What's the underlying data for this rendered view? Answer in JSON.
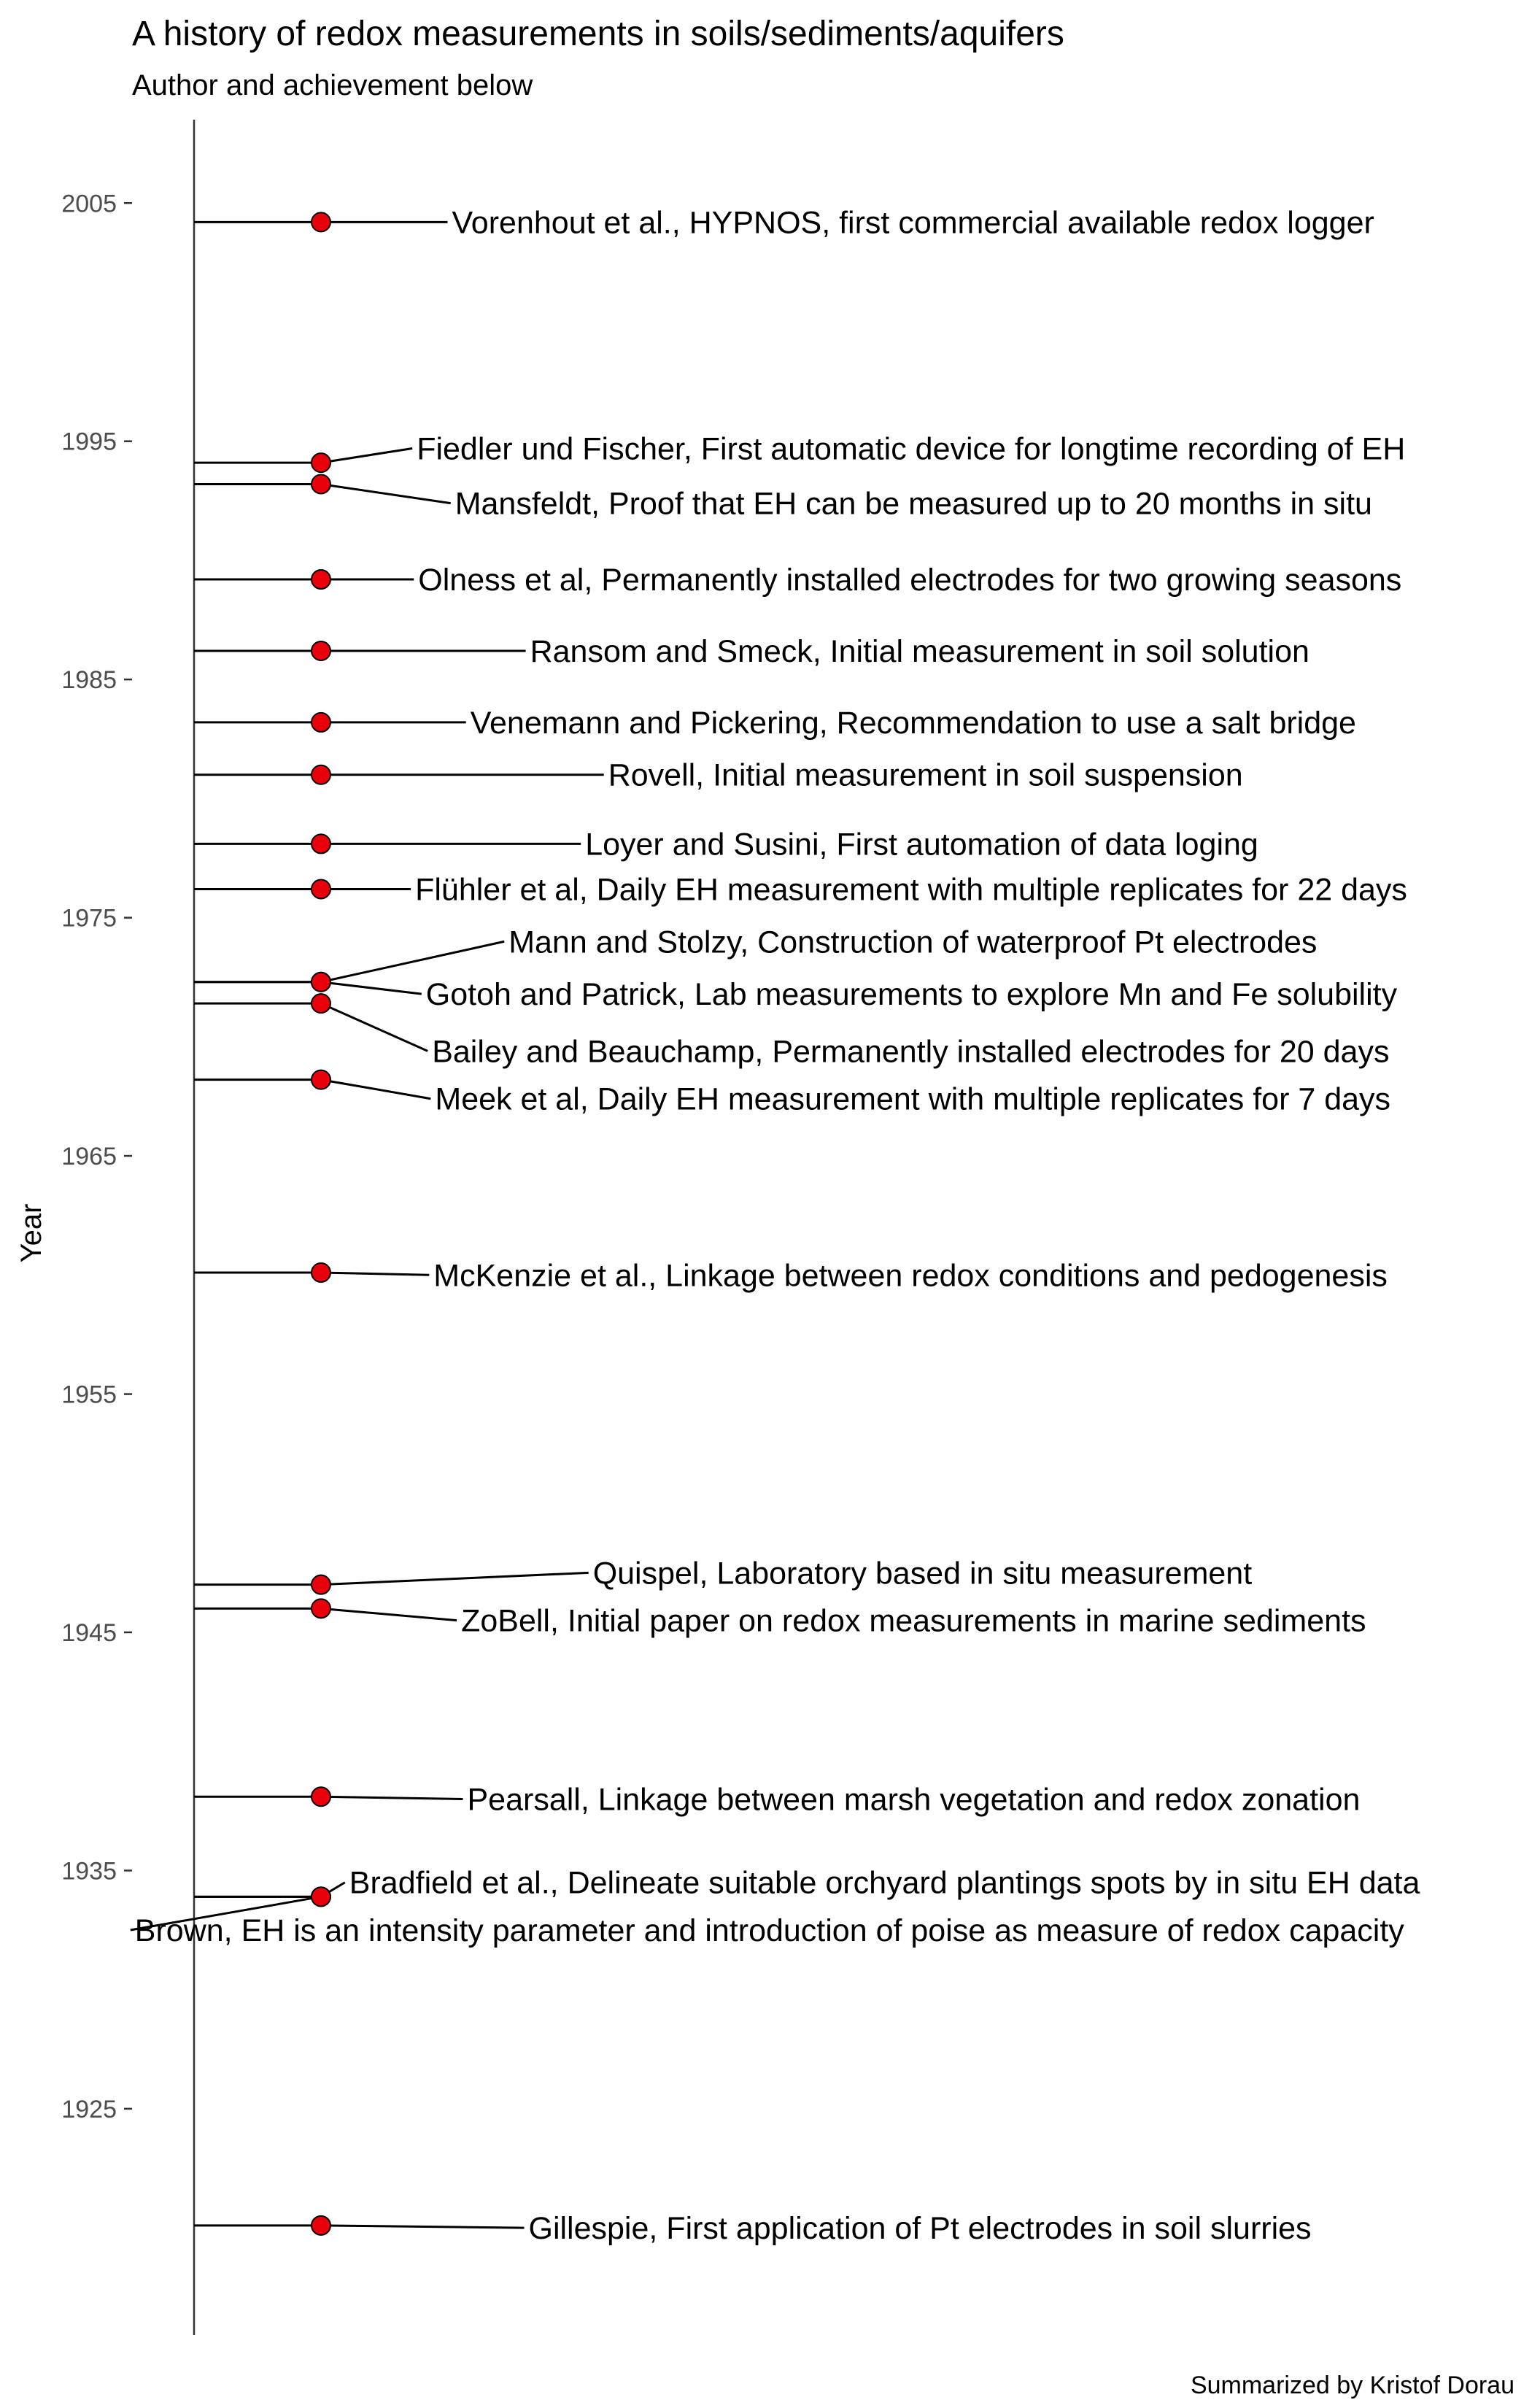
{
  "chart_data": {
    "type": "scatter",
    "title": "A history of redox measurements in soils/sediments/aquifers",
    "subtitle": "Author and achievement below",
    "caption": "Summarized by Kristof Dorau",
    "ylabel": "Year",
    "xlabel": "",
    "ylim": [
      1915.5,
      2008.5
    ],
    "y_ticks": [
      1925,
      1935,
      1945,
      1955,
      1965,
      1975,
      1985,
      1995,
      2005
    ],
    "point_color": "#e8000b",
    "grid": false,
    "legend": "none",
    "events": [
      {
        "year": 2004.2,
        "label": "Vorenhout et al., HYPNOS, first commercial available redox logger",
        "label_year": 2004.2,
        "label_x_pct": 0.295
      },
      {
        "year": 1994.1,
        "label": "Fiedler und Fischer, First automatic device for longtime recording of EH",
        "label_year": 1994.7,
        "label_x_pct": 0.272
      },
      {
        "year": 1993.2,
        "label": "Mansfeldt, Proof that EH can be measured up to 20 months in situ",
        "label_year": 1992.4,
        "label_x_pct": 0.297
      },
      {
        "year": 1989.2,
        "label": "Olness et al, Permanently installed electrodes for two growing seasons",
        "label_year": 1989.2,
        "label_x_pct": 0.273
      },
      {
        "year": 1986.2,
        "label": "Ransom and Smeck, Initial measurement in soil solution",
        "label_year": 1986.2,
        "label_x_pct": 0.346
      },
      {
        "year": 1983.2,
        "label": "Venemann and Pickering, Recommendation to use a salt bridge",
        "label_year": 1983.2,
        "label_x_pct": 0.307
      },
      {
        "year": 1981.0,
        "label": "Rovell, Initial measurement in soil suspension",
        "label_year": 1981.0,
        "label_x_pct": 0.397
      },
      {
        "year": 1978.1,
        "label": "Loyer and Susini, First automation of data loging",
        "label_year": 1978.1,
        "label_x_pct": 0.382
      },
      {
        "year": 1976.2,
        "label": "Flühler et al, Daily EH measurement with multiple replicates for 22 days",
        "label_year": 1976.2,
        "label_x_pct": 0.271
      },
      {
        "year": 1972.3,
        "label": "Mann and Stolzy, Construction of waterproof Pt electrodes",
        "label_year": 1974.0,
        "label_x_pct": 0.332
      },
      {
        "year": 1972.3,
        "label": "Gotoh and Patrick, Lab measurements to explore Mn and Fe solubility",
        "label_year": 1971.8,
        "label_x_pct": 0.278
      },
      {
        "year": 1971.4,
        "label": "Bailey and Beauchamp, Permanently installed electrodes for 20 days",
        "label_year": 1969.4,
        "label_x_pct": 0.282
      },
      {
        "year": 1968.2,
        "label": "Meek et al, Daily EH measurement with multiple replicates for 7 days",
        "label_year": 1967.4,
        "label_x_pct": 0.284
      },
      {
        "year": 1960.1,
        "label": "McKenzie et al., Linkage between redox conditions and pedogenesis",
        "label_year": 1960.0,
        "label_x_pct": 0.283
      },
      {
        "year": 1947.0,
        "label": "Quispel, Laboratory based in situ measurement",
        "label_year": 1947.5,
        "label_x_pct": 0.387
      },
      {
        "year": 1946.0,
        "label": "ZoBell, Initial paper on redox measurements in marine sediments",
        "label_year": 1945.5,
        "label_x_pct": 0.301
      },
      {
        "year": 1938.1,
        "label": "Pearsall, Linkage between marsh vegetation and redox zonation",
        "label_year": 1938.0,
        "label_x_pct": 0.305
      },
      {
        "year": 1933.9,
        "label": "Bradfield et al., Delineate suitable orchyard plantings spots by in situ EH data",
        "label_year": 1934.5,
        "label_x_pct": 0.228
      },
      {
        "year": 1933.9,
        "label": "Brown, EH is an intensity parameter and introduction of poise as measure of redox capacity",
        "label_year": 1932.5,
        "label_x_pct": 0.088
      },
      {
        "year": 1920.1,
        "label": "Gillespie, First application of Pt electrodes in soil slurries",
        "label_year": 1920.0,
        "label_x_pct": 0.345
      }
    ]
  }
}
